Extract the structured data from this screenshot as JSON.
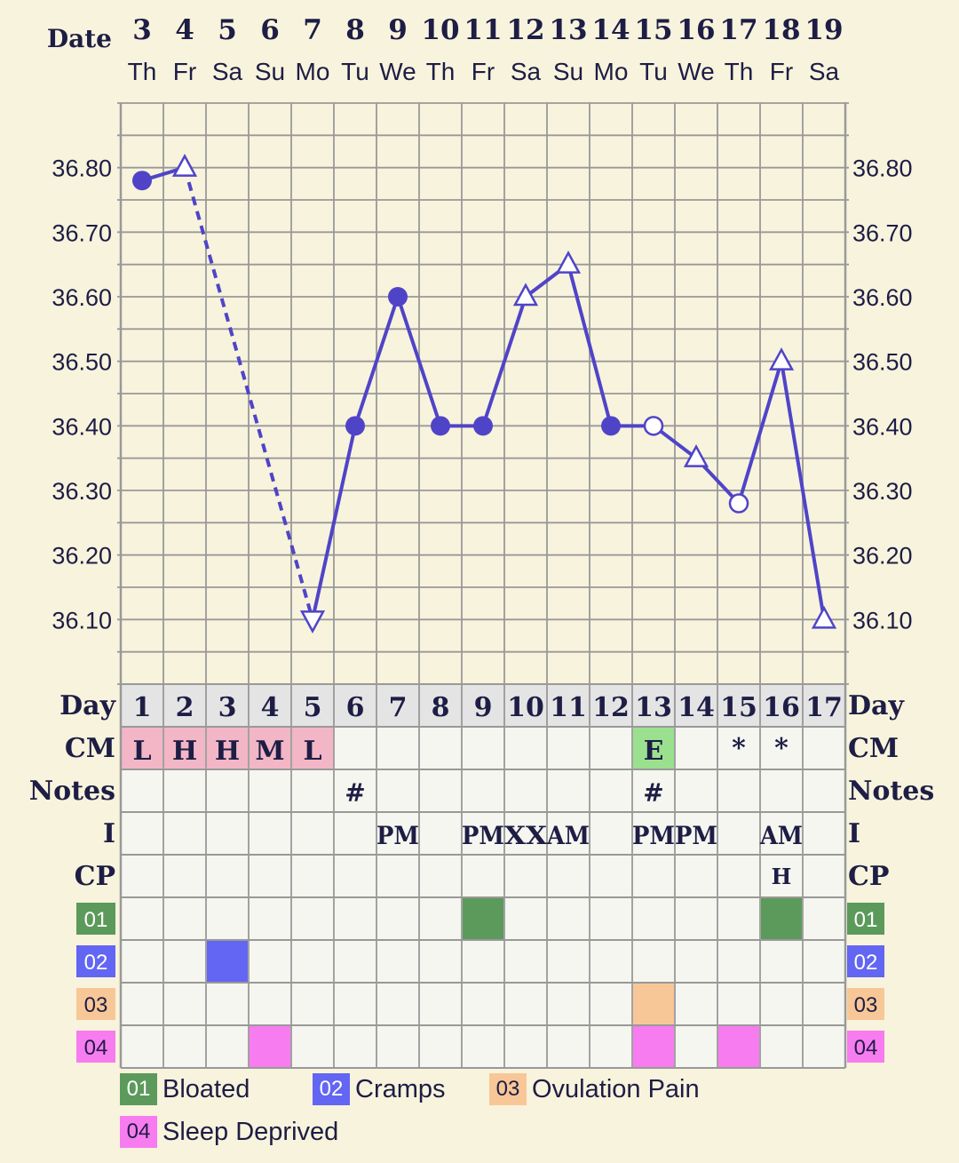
{
  "header": {
    "date_label": "Date",
    "day_label": "Day",
    "cm_label": "CM",
    "notes_label": "Notes",
    "i_label": "I",
    "cp_label": "CP"
  },
  "colors": {
    "line": "#4f44c8",
    "grid": "#999999",
    "cm_red": "#f2b6c6",
    "cm_green": "#9be08f",
    "cat01": "#5c9a5c",
    "cat02": "#6266f2",
    "cat03": "#f8c797",
    "cat04": "#f77cf0"
  },
  "chart_data": {
    "type": "line",
    "dates": [
      "3",
      "4",
      "5",
      "6",
      "7",
      "8",
      "9",
      "10",
      "11",
      "12",
      "13",
      "14",
      "15",
      "16",
      "17",
      "18",
      "19"
    ],
    "weekdays": [
      "Th",
      "Fr",
      "Sa",
      "Su",
      "Mo",
      "Tu",
      "We",
      "Th",
      "Fr",
      "Sa",
      "Su",
      "Mo",
      "Tu",
      "We",
      "Th",
      "Fr",
      "Sa"
    ],
    "cycle_days": [
      "1",
      "2",
      "3",
      "4",
      "5",
      "6",
      "7",
      "8",
      "9",
      "10",
      "11",
      "12",
      "13",
      "14",
      "15",
      "16",
      "17"
    ],
    "ylim": [
      36.0,
      36.9
    ],
    "yticks": [
      "36.10",
      "36.20",
      "36.30",
      "36.40",
      "36.50",
      "36.60",
      "36.70",
      "36.80"
    ],
    "grid": true,
    "temperatures": [
      36.78,
      36.8,
      null,
      null,
      36.1,
      36.4,
      36.6,
      36.4,
      36.4,
      36.6,
      36.65,
      36.4,
      36.4,
      36.35,
      36.28,
      36.5,
      36.1
    ],
    "markers": [
      "filled-circle",
      "open-triangle-up",
      "",
      "",
      "open-triangle-down",
      "filled-circle",
      "filled-circle",
      "filled-circle",
      "filled-circle",
      "open-triangle-up",
      "open-triangle-up",
      "filled-circle",
      "open-circle",
      "open-triangle-up",
      "open-circle",
      "open-triangle-up",
      "open-triangle-up"
    ],
    "dashed_segments": [
      [
        1,
        4
      ]
    ],
    "cm": [
      "L",
      "H",
      "H",
      "M",
      "L",
      "",
      "",
      "",
      "",
      "",
      "",
      "",
      "E",
      "",
      "*",
      "*",
      ""
    ],
    "cm_colors": [
      "red",
      "red",
      "red",
      "red",
      "red",
      "",
      "",
      "",
      "",
      "",
      "",
      "",
      "green",
      "",
      "",
      "",
      ""
    ],
    "notes": [
      "",
      "",
      "",
      "",
      "",
      "#",
      "",
      "",
      "",
      "",
      "",
      "",
      "#",
      "",
      "",
      "",
      ""
    ],
    "intercourse": [
      "",
      "",
      "",
      "",
      "",
      "",
      "PM",
      "",
      "PM",
      "XX",
      "AM",
      "",
      "PM",
      "PM",
      "",
      "AM",
      ""
    ],
    "cp": [
      "",
      "",
      "",
      "",
      "",
      "",
      "",
      "",
      "",
      "",
      "",
      "",
      "",
      "",
      "",
      "H",
      ""
    ],
    "categories": [
      {
        "code": "01",
        "name": "Bloated",
        "days": [
          9,
          16
        ]
      },
      {
        "code": "02",
        "name": "Cramps",
        "days": [
          3
        ]
      },
      {
        "code": "03",
        "name": "Ovulation Pain",
        "days": [
          13
        ]
      },
      {
        "code": "04",
        "name": "Sleep Deprived",
        "days": [
          4,
          13,
          15
        ]
      }
    ]
  }
}
